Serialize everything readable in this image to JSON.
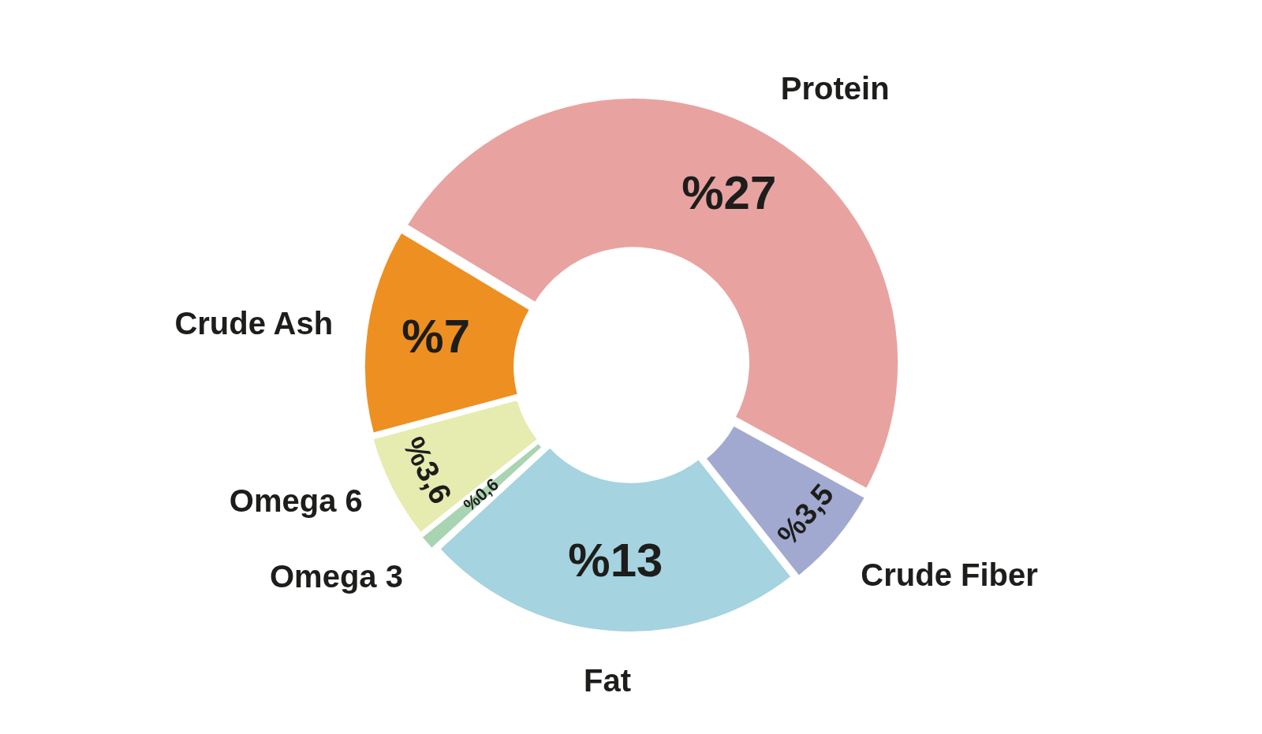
{
  "chart_data": {
    "type": "donut",
    "categories": [
      "Protein",
      "Crude Fiber",
      "Fat",
      "Omega 3",
      "Omega 6",
      "Crude Ash"
    ],
    "values": [
      27,
      3.5,
      13,
      0.6,
      3.6,
      7
    ],
    "colors": [
      "#e8a3a0",
      "#a1a9d0",
      "#a5d3df",
      "#a9d4b1",
      "#e6ecb0",
      "#ee8f22"
    ],
    "value_labels": [
      "%27",
      "%3,5",
      "%13",
      "%0,6",
      "%3,6",
      "%7"
    ]
  }
}
